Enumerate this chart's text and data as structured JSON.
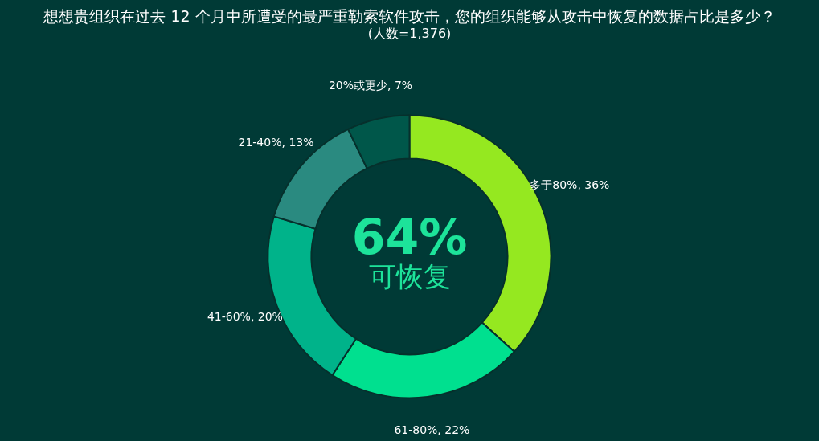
{
  "chart_data": {
    "type": "donut",
    "title": "想想贵组织在过去 12 个月中所遭受的最严重勒索软件攻击，您的组织能够从攻击中恢复的数据占比是多少？",
    "subtitle": "(人数=1,376)",
    "categories": [
      "多于80%",
      "61-80%",
      "41-60%",
      "21-40%",
      "20%或更少"
    ],
    "values": [
      36,
      22,
      20,
      13,
      7
    ],
    "value_labels": [
      "36%",
      "22%",
      "20%",
      "13%",
      "7%"
    ],
    "colors": [
      "#95e820",
      "#00e08f",
      "#00b38a",
      "#2a8a80",
      "#00574a"
    ],
    "annotations": [
      "64%",
      "可恢复"
    ],
    "legend": false
  }
}
